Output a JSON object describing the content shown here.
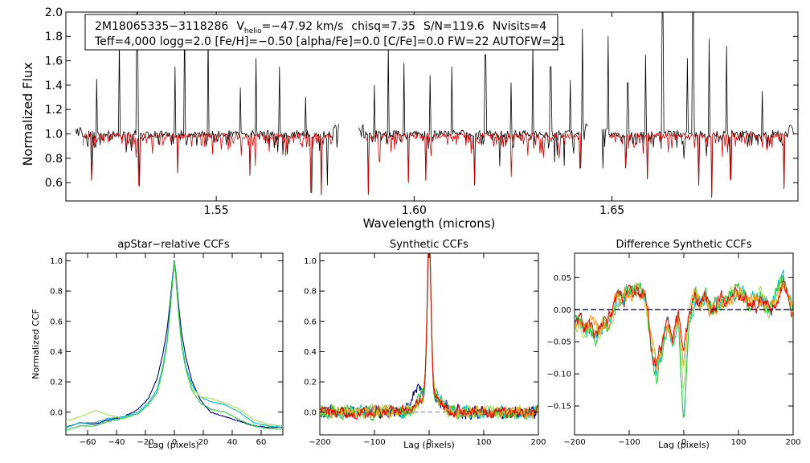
{
  "chart_data": [
    {
      "type": "line",
      "id": "spectrum",
      "title": "",
      "xlabel": "Wavelength (microns)",
      "ylabel": "Normalized Flux",
      "xlim": [
        1.512,
        1.697
      ],
      "ylim": [
        0.45,
        2.0
      ],
      "xticks": [
        1.55,
        1.6,
        1.65
      ],
      "xtick_labels": [
        "1.55",
        "1.60",
        "1.65"
      ],
      "yticks": [
        0.6,
        0.8,
        1.0,
        1.2,
        1.4,
        1.6,
        1.8,
        2.0
      ],
      "ytick_labels": [
        "0.6",
        "0.8",
        "1.0",
        "1.2",
        "1.4",
        "1.6",
        "1.8",
        "2.0"
      ],
      "chips": [
        [
          1.5145,
          1.581
        ],
        [
          1.586,
          1.644
        ],
        [
          1.6475,
          1.696
        ]
      ],
      "series": [
        {
          "name": "observed",
          "color": "#000000",
          "continuum": 1.0,
          "scatter": 0.03,
          "spikes": [
            [
              1.5198,
              1.45
            ],
            [
              1.5255,
              1.78
            ],
            [
              1.53,
              2.0
            ],
            [
              1.5395,
              1.55
            ],
            [
              1.542,
              2.0
            ],
            [
              1.548,
              1.82
            ],
            [
              1.556,
              1.38
            ],
            [
              1.56,
              1.62
            ],
            [
              1.566,
              1.55
            ],
            [
              1.5725,
              1.3
            ],
            [
              1.59,
              1.4
            ],
            [
              1.5935,
              1.72
            ],
            [
              1.5975,
              1.58
            ],
            [
              1.604,
              1.48
            ],
            [
              1.6095,
              1.55
            ],
            [
              1.618,
              1.65
            ],
            [
              1.6245,
              1.42
            ],
            [
              1.63,
              1.75
            ],
            [
              1.6345,
              1.55
            ],
            [
              1.6395,
              1.44
            ],
            [
              1.6425,
              1.82
            ],
            [
              1.649,
              1.8
            ],
            [
              1.654,
              1.42
            ],
            [
              1.6585,
              1.65
            ],
            [
              1.6628,
              2.0
            ],
            [
              1.669,
              1.62
            ],
            [
              1.6705,
              2.0
            ],
            [
              1.6745,
              1.78
            ],
            [
              1.679,
              1.72
            ],
            [
              1.688,
              1.35
            ]
          ],
          "dips": [
            [
              1.5185,
              0.62
            ],
            [
              1.5305,
              0.57
            ],
            [
              1.5402,
              0.68
            ],
            [
              1.5585,
              0.66
            ],
            [
              1.574,
              0.52
            ],
            [
              1.5765,
              0.5
            ],
            [
              1.578,
              0.58
            ],
            [
              1.5885,
              0.5
            ],
            [
              1.5985,
              0.6
            ],
            [
              1.603,
              0.62
            ],
            [
              1.6153,
              0.58
            ],
            [
              1.6245,
              0.64
            ],
            [
              1.638,
              0.74
            ],
            [
              1.642,
              0.72
            ],
            [
              1.6442,
              0.66
            ],
            [
              1.6478,
              0.65
            ],
            [
              1.6535,
              0.72
            ],
            [
              1.659,
              0.63
            ],
            [
              1.672,
              0.58
            ],
            [
              1.6752,
              0.48
            ],
            [
              1.68,
              0.62
            ],
            [
              1.6935,
              0.55
            ]
          ]
        },
        {
          "name": "synthetic",
          "color": "#dd0000",
          "continuum": 0.985,
          "scatter": 0.025,
          "dips": [
            [
              1.5185,
              0.62
            ],
            [
              1.5305,
              0.58
            ],
            [
              1.5402,
              0.69
            ],
            [
              1.5585,
              0.67
            ],
            [
              1.574,
              0.54
            ],
            [
              1.5765,
              0.52
            ],
            [
              1.5885,
              0.52
            ],
            [
              1.5985,
              0.61
            ],
            [
              1.603,
              0.63
            ],
            [
              1.6153,
              0.59
            ],
            [
              1.6245,
              0.65
            ],
            [
              1.642,
              0.73
            ],
            [
              1.6535,
              0.73
            ],
            [
              1.659,
              0.64
            ],
            [
              1.672,
              0.59
            ],
            [
              1.6752,
              0.5
            ],
            [
              1.68,
              0.63
            ],
            [
              1.6935,
              0.57
            ]
          ]
        }
      ],
      "info_box": {
        "line1": {
          "star_id": "2M18065335−3118286",
          "v_label": "V",
          "v_subscript": "helio",
          "v_value": "=−47.92 km/s",
          "chisq": "chisq=7.35",
          "snr": "S/N=119.6",
          "nvisits": "Nvisits=4"
        },
        "line2": "Teff=4,000 logg=2.0 [Fe/H]=−0.50 [alpha/Fe]=0.0 [C/Fe]=0.0 FW=22 AUTOFW=21"
      }
    },
    {
      "type": "line",
      "id": "apstar",
      "title": "apStar−relative CCFs",
      "xlabel": "Lag (pixels)",
      "ylabel": "Normalized CCF",
      "xlim": [
        -75,
        75
      ],
      "ylim": [
        -0.15,
        1.05
      ],
      "xticks": [
        -60,
        -40,
        -20,
        0,
        20,
        40,
        60
      ],
      "xtick_labels": [
        "−60",
        "−40",
        "−20",
        "0",
        "20",
        "40",
        "60"
      ],
      "yticks": [
        0.0,
        0.2,
        0.4,
        0.6,
        0.8,
        1.0
      ],
      "ytick_labels": [
        "0.0",
        "0.2",
        "0.4",
        "0.6",
        "0.8",
        "1.0"
      ],
      "series": [
        {
          "name": "navy",
          "color": "#000080",
          "x": [
            -75,
            -65,
            -55,
            -45,
            -35,
            -25,
            -18,
            -12,
            -8,
            -5,
            -3,
            -1,
            0,
            1,
            3,
            5,
            8,
            12,
            18,
            25,
            35,
            45,
            55,
            65,
            75
          ],
          "y": [
            -0.1,
            -0.07,
            -0.08,
            -0.05,
            -0.03,
            0.02,
            0.09,
            0.22,
            0.38,
            0.55,
            0.72,
            0.92,
            1.0,
            0.92,
            0.7,
            0.52,
            0.36,
            0.21,
            0.08,
            0.0,
            -0.03,
            -0.06,
            -0.09,
            -0.1,
            -0.1
          ]
        },
        {
          "name": "cyan",
          "color": "#00bcd4",
          "x": [
            -75,
            -65,
            -55,
            -45,
            -35,
            -25,
            -18,
            -12,
            -8,
            -5,
            -3,
            -1,
            0,
            1,
            3,
            5,
            8,
            12,
            18,
            25,
            35,
            45,
            55,
            65,
            75
          ],
          "y": [
            -0.1,
            -0.07,
            -0.07,
            -0.04,
            -0.03,
            0.0,
            0.06,
            0.15,
            0.3,
            0.48,
            0.68,
            0.9,
            0.99,
            0.9,
            0.66,
            0.46,
            0.3,
            0.18,
            0.1,
            0.07,
            0.05,
            0.0,
            -0.07,
            -0.09,
            -0.1
          ]
        },
        {
          "name": "light green",
          "color": "#a8e05a",
          "x": [
            -75,
            -65,
            -55,
            -45,
            -35,
            -25,
            -18,
            -12,
            -8,
            -5,
            -3,
            -1,
            0,
            1,
            3,
            5,
            8,
            12,
            18,
            25,
            35,
            45,
            55,
            65,
            75
          ],
          "y": [
            -0.06,
            -0.03,
            0.01,
            -0.02,
            -0.04,
            -0.01,
            0.05,
            0.13,
            0.28,
            0.46,
            0.66,
            0.89,
            0.99,
            0.89,
            0.64,
            0.44,
            0.28,
            0.16,
            0.1,
            0.09,
            0.06,
            0.02,
            -0.05,
            -0.08,
            -0.09
          ]
        },
        {
          "name": "green",
          "color": "#2ecc40",
          "x": [
            -75,
            -65,
            -55,
            -45,
            -35,
            -25,
            -18,
            -12,
            -8,
            -5,
            -3,
            -1,
            0,
            1,
            3,
            5,
            8,
            12,
            18,
            25,
            35,
            45,
            55,
            65,
            75
          ],
          "y": [
            -0.12,
            -0.09,
            -0.09,
            -0.06,
            -0.04,
            -0.01,
            0.05,
            0.13,
            0.28,
            0.46,
            0.66,
            0.89,
            0.99,
            0.89,
            0.64,
            0.44,
            0.28,
            0.15,
            0.06,
            0.02,
            0.0,
            -0.05,
            -0.09,
            -0.11,
            -0.11
          ]
        }
      ]
    },
    {
      "type": "line",
      "id": "synthetic",
      "title": "Synthetic CCFs",
      "xlabel": "Lag (pixels)",
      "ylabel": "",
      "xlim": [
        -200,
        200
      ],
      "ylim": [
        -0.15,
        1.05
      ],
      "xticks": [
        -200,
        -100,
        0,
        100,
        200
      ],
      "xtick_labels": [
        "−200",
        "−100",
        "0",
        "100",
        "200"
      ],
      "yticks": [
        0.0,
        0.2,
        0.4,
        0.6,
        0.8,
        1.0
      ],
      "ytick_labels": [
        "0.0",
        "0.2",
        "0.4",
        "0.6",
        "0.8",
        "1.0"
      ],
      "zero_line": true,
      "peak": {
        "center": 0,
        "height": 1.0,
        "width": 5,
        "shoulder_height": 0.12,
        "shoulder_width": 25
      },
      "series": [
        {
          "name": "navy",
          "color": "#000080",
          "noise": 0.035,
          "seed": 11,
          "bump": [
            -22,
            0.1
          ]
        },
        {
          "name": "cyan",
          "color": "#00bcd4",
          "noise": 0.035,
          "seed": 23,
          "bump": [
            15,
            0.04
          ]
        },
        {
          "name": "light green",
          "color": "#a8e05a",
          "noise": 0.035,
          "seed": 37,
          "bump": [
            10,
            0.03
          ]
        },
        {
          "name": "green",
          "color": "#2ecc40",
          "noise": 0.035,
          "seed": 41,
          "bump": [
            -10,
            0.03
          ]
        },
        {
          "name": "orange",
          "color": "#ff9a1a",
          "noise": 0.03,
          "seed": 53,
          "bump": [
            5,
            0.02
          ]
        },
        {
          "name": "red",
          "color": "#dd1111",
          "noise": 0.03,
          "seed": 67,
          "bump": [
            -5,
            0.02
          ]
        }
      ]
    },
    {
      "type": "line",
      "id": "difference",
      "title": "Difference Synthetic CCFs",
      "xlabel": "Lag (pixels)",
      "ylabel": "",
      "xlim": [
        -200,
        200
      ],
      "ylim": [
        -0.195,
        0.088
      ],
      "xticks": [
        -200,
        -100,
        0,
        100,
        200
      ],
      "xtick_labels": [
        "−200",
        "−100",
        "0",
        "100",
        "200"
      ],
      "yticks": [
        -0.15,
        -0.1,
        -0.05,
        0.0,
        0.05
      ],
      "ytick_labels": [
        "−0.15",
        "−0.10",
        "−0.05",
        "0.00",
        "0.05"
      ],
      "zero_line": true,
      "base": {
        "x": [
          -200,
          -180,
          -160,
          -140,
          -120,
          -100,
          -80,
          -70,
          -60,
          -50,
          -40,
          -30,
          -20,
          -10,
          -5,
          0,
          5,
          10,
          20,
          30,
          40,
          50,
          60,
          80,
          100,
          120,
          140,
          160,
          170,
          180,
          190,
          200
        ],
        "y": [
          -0.02,
          -0.03,
          -0.035,
          -0.02,
          0.02,
          0.03,
          0.03,
          0.02,
          -0.06,
          -0.1,
          -0.06,
          -0.02,
          -0.05,
          -0.01,
          -0.08,
          -0.12,
          -0.06,
          -0.01,
          0.02,
          0.01,
          0.02,
          0.0,
          0.01,
          0.02,
          0.03,
          0.01,
          0.02,
          0.0,
          0.02,
          0.05,
          0.03,
          0.0
        ]
      },
      "series": [
        {
          "name": "cyan",
          "color": "#00bcd4",
          "seed": 5,
          "amp": 1.0,
          "dip": -0.06
        },
        {
          "name": "light green",
          "color": "#a8e05a",
          "seed": 9,
          "amp": 0.9,
          "dip": -0.01
        },
        {
          "name": "green",
          "color": "#2ecc40",
          "seed": 13,
          "amp": 1.05,
          "dip": -0.05
        },
        {
          "name": "orange",
          "color": "#ff9a1a",
          "seed": 17,
          "amp": 0.85,
          "dip": 0.02
        },
        {
          "name": "red",
          "color": "#dd1111",
          "seed": 21,
          "amp": 0.9,
          "dip": 0.035
        }
      ]
    }
  ]
}
